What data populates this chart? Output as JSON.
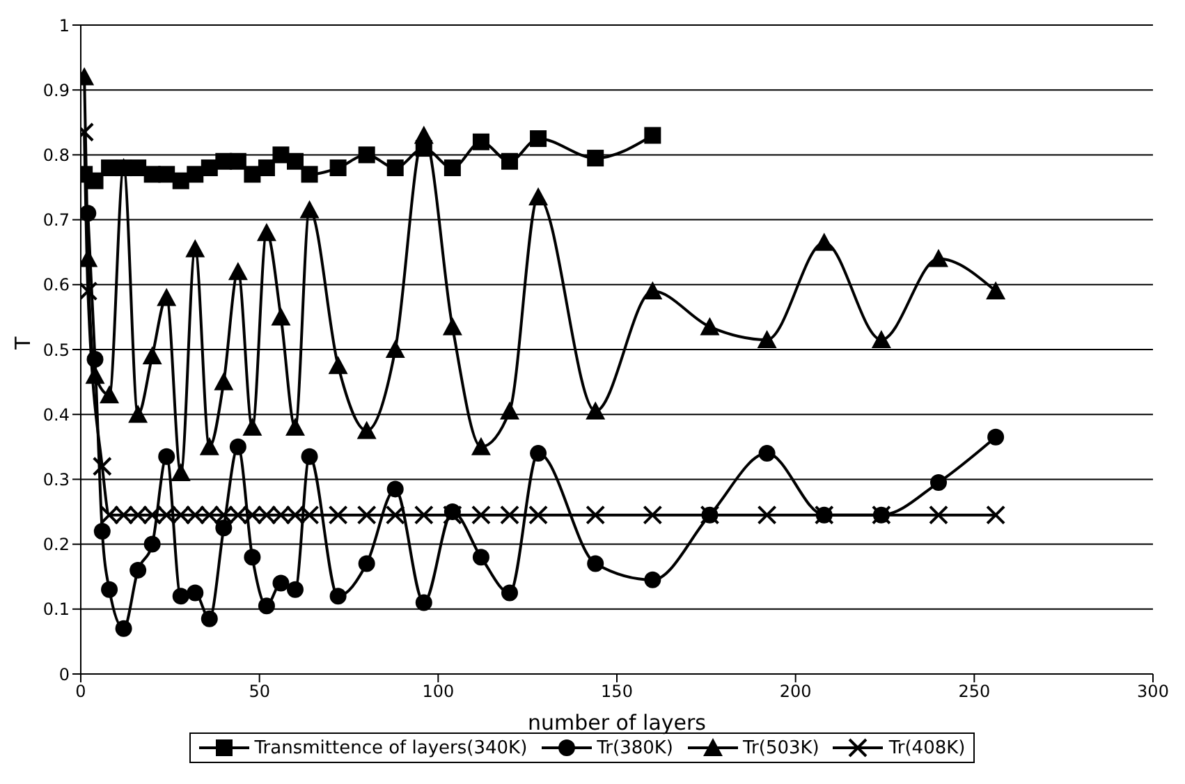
{
  "chart_data": {
    "type": "line",
    "xlabel": "number of layers",
    "ylabel": "T",
    "xlim": [
      0,
      300
    ],
    "xticks": [
      0,
      50,
      100,
      150,
      200,
      250,
      300
    ],
    "ylim": [
      0,
      1
    ],
    "yticks": [
      0,
      0.1,
      0.2,
      0.3,
      0.4,
      0.5,
      0.6,
      0.7,
      0.8,
      0.9,
      1
    ],
    "grid": "y",
    "legend": "bottom",
    "line_style": "solid",
    "series": [
      {
        "name": "Transmittence of layers(340K)",
        "color": "#000000",
        "marker": "square",
        "x": [
          1,
          4,
          8,
          12,
          16,
          20,
          24,
          28,
          32,
          36,
          40,
          44,
          48,
          52,
          56,
          60,
          64,
          72,
          80,
          88,
          96,
          104,
          112,
          120,
          128,
          144,
          160
        ],
        "values": [
          0.77,
          0.76,
          0.78,
          0.78,
          0.78,
          0.77,
          0.77,
          0.76,
          0.77,
          0.78,
          0.79,
          0.79,
          0.77,
          0.78,
          0.8,
          0.79,
          0.77,
          0.78,
          0.8,
          0.78,
          0.81,
          0.78,
          0.82,
          0.79,
          0.825,
          0.795,
          0.83
        ]
      },
      {
        "name": "Tr(380K)",
        "color": "#000000",
        "marker": "circle",
        "x": [
          2,
          4,
          6,
          8,
          12,
          16,
          20,
          24,
          28,
          32,
          36,
          40,
          44,
          48,
          52,
          56,
          60,
          64,
          72,
          80,
          88,
          96,
          104,
          112,
          120,
          128,
          144,
          160,
          176,
          192,
          208,
          224,
          240,
          256
        ],
        "values": [
          0.71,
          0.485,
          0.22,
          0.13,
          0.07,
          0.16,
          0.2,
          0.335,
          0.12,
          0.125,
          0.085,
          0.225,
          0.35,
          0.18,
          0.105,
          0.14,
          0.13,
          0.335,
          0.12,
          0.17,
          0.285,
          0.11,
          0.25,
          0.18,
          0.125,
          0.34,
          0.17,
          0.145,
          0.245,
          0.34,
          0.245,
          0.245,
          0.295,
          0.365
        ]
      },
      {
        "name": "Tr(503K)",
        "color": "#000000",
        "marker": "triangle",
        "x": [
          1,
          2,
          4,
          8,
          12,
          16,
          20,
          24,
          28,
          32,
          36,
          40,
          44,
          48,
          52,
          56,
          60,
          64,
          72,
          80,
          88,
          96,
          104,
          112,
          120,
          128,
          144,
          160,
          176,
          192,
          208,
          224,
          240,
          256
        ],
        "values": [
          0.92,
          0.64,
          0.46,
          0.43,
          0.78,
          0.4,
          0.49,
          0.58,
          0.31,
          0.655,
          0.35,
          0.45,
          0.62,
          0.38,
          0.68,
          0.55,
          0.38,
          0.715,
          0.475,
          0.375,
          0.5,
          0.83,
          0.535,
          0.35,
          0.405,
          0.735,
          0.405,
          0.59,
          0.535,
          0.515,
          0.665,
          0.515,
          0.64,
          0.59
        ]
      },
      {
        "name": "Tr(408K)",
        "color": "#000000",
        "marker": "cross",
        "x": [
          1,
          2,
          6,
          8,
          12,
          16,
          20,
          24,
          28,
          32,
          36,
          40,
          44,
          48,
          52,
          56,
          60,
          64,
          72,
          80,
          88,
          96,
          104,
          112,
          120,
          128,
          144,
          160,
          176,
          192,
          208,
          224,
          240,
          256
        ],
        "values": [
          0.835,
          0.59,
          0.32,
          0.245,
          0.245,
          0.245,
          0.245,
          0.245,
          0.245,
          0.245,
          0.245,
          0.245,
          0.245,
          0.245,
          0.245,
          0.245,
          0.245,
          0.245,
          0.245,
          0.245,
          0.245,
          0.245,
          0.245,
          0.245,
          0.245,
          0.245,
          0.245,
          0.245,
          0.245,
          0.245,
          0.245,
          0.245,
          0.245,
          0.245
        ]
      }
    ]
  }
}
